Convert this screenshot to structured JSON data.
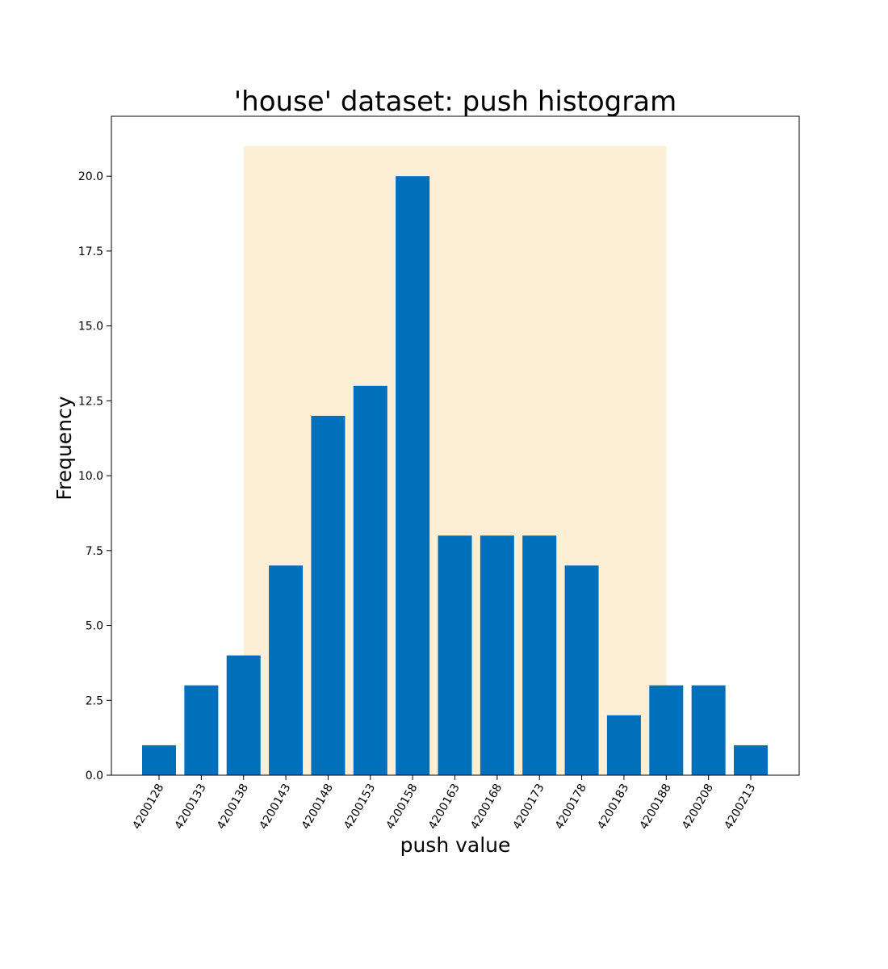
{
  "chart_data": {
    "type": "bar",
    "title": "'house' dataset: push histogram",
    "xlabel": "push value",
    "ylabel": "Frequency",
    "categories": [
      "4200128",
      "4200133",
      "4200138",
      "4200143",
      "4200148",
      "4200153",
      "4200158",
      "4200163",
      "4200168",
      "4200173",
      "4200178",
      "4200183",
      "4200188",
      "4200208",
      "4200213"
    ],
    "values": [
      1,
      3,
      4,
      7,
      12,
      13,
      20,
      8,
      8,
      8,
      7,
      2,
      3,
      3,
      1
    ],
    "ylim": [
      0,
      22
    ],
    "yticks": [
      "0.0",
      "2.5",
      "5.0",
      "7.5",
      "10.0",
      "12.5",
      "15.0",
      "17.5",
      "20.0"
    ],
    "highlight": {
      "from_category": "4200138",
      "to_category": "4200188",
      "y_top": 21
    },
    "bar_color": "#0070bb",
    "highlight_color": "#fdefd6",
    "grid": false,
    "legend": "none"
  }
}
